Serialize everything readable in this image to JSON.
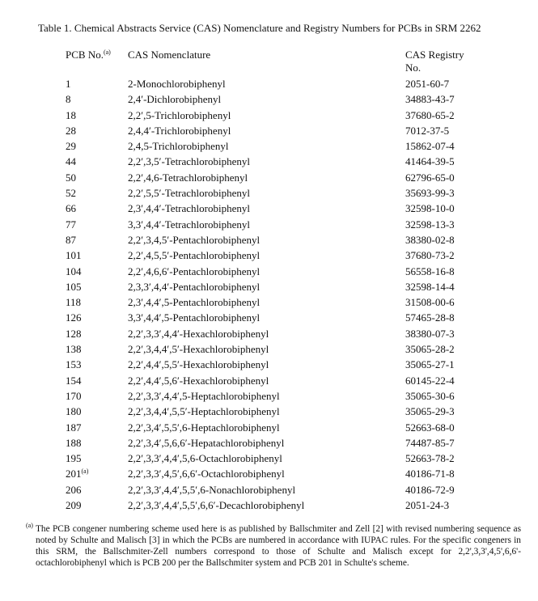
{
  "title": "Table 1.  Chemical Abstracts Service (CAS) Nomenclature and Registry Numbers for PCBs in SRM 2262",
  "headers": {
    "pcb": "PCB No.",
    "pcb_sup": "(a)",
    "name": "CAS Nomenclature",
    "cas_line1": "CAS Registry",
    "cas_line2": "No."
  },
  "rows": [
    {
      "pcb": "1",
      "sup": "",
      "name": "2-Monochlorobiphenyl",
      "cas": "2051-60-7"
    },
    {
      "pcb": "8",
      "sup": "",
      "name": "2,4′-Dichlorobiphenyl",
      "cas": "34883-43-7"
    },
    {
      "pcb": "18",
      "sup": "",
      "name": "2,2′,5-Trichlorobiphenyl",
      "cas": "37680-65-2"
    },
    {
      "pcb": "28",
      "sup": "",
      "name": "2,4,4′-Trichlorobiphenyl",
      "cas": "7012-37-5"
    },
    {
      "pcb": "29",
      "sup": "",
      "name": "2,4,5-Trichlorobiphenyl",
      "cas": "15862-07-4"
    },
    {
      "pcb": "44",
      "sup": "",
      "name": "2,2′,3,5′-Tetrachlorobiphenyl",
      "cas": "41464-39-5"
    },
    {
      "pcb": "50",
      "sup": "",
      "name": "2,2′,4,6-Tetrachlorobiphenyl",
      "cas": "62796-65-0"
    },
    {
      "pcb": "52",
      "sup": "",
      "name": "2,2′,5,5′-Tetrachlorobiphenyl",
      "cas": "35693-99-3"
    },
    {
      "pcb": "66",
      "sup": "",
      "name": "2,3′,4,4′-Tetrachlorobiphenyl",
      "cas": "32598-10-0"
    },
    {
      "pcb": "77",
      "sup": "",
      "name": "3,3′,4,4′-Tetrachlorobiphenyl",
      "cas": "32598-13-3"
    },
    {
      "pcb": "87",
      "sup": "",
      "name": "2,2′,3,4,5′-Pentachlorobiphenyl",
      "cas": "38380-02-8"
    },
    {
      "pcb": "101",
      "sup": "",
      "name": "2,2′,4,5,5′-Pentachlorobiphenyl",
      "cas": "37680-73-2"
    },
    {
      "pcb": "104",
      "sup": "",
      "name": "2,2′,4,6,6′-Pentachlorobiphenyl",
      "cas": "56558-16-8"
    },
    {
      "pcb": "105",
      "sup": "",
      "name": "2,3,3′,4,4′-Pentachlorobiphenyl",
      "cas": "32598-14-4"
    },
    {
      "pcb": "118",
      "sup": "",
      "name": "2,3′,4,4′,5-Pentachlorobiphenyl",
      "cas": "31508-00-6"
    },
    {
      "pcb": "126",
      "sup": "",
      "name": "3,3′,4,4′,5-Pentachlorobiphenyl",
      "cas": "57465-28-8"
    },
    {
      "pcb": "128",
      "sup": "",
      "name": "2,2′,3,3′,4,4′-Hexachlorobiphenyl",
      "cas": "38380-07-3"
    },
    {
      "pcb": "138",
      "sup": "",
      "name": "2,2′,3,4,4′,5′-Hexachlorobiphenyl",
      "cas": "35065-28-2"
    },
    {
      "pcb": "153",
      "sup": "",
      "name": "2,2′,4,4′,5,5′-Hexachlorobiphenyl",
      "cas": "35065-27-1"
    },
    {
      "pcb": "154",
      "sup": "",
      "name": "2,2′,4,4′,5,6′-Hexachlorobiphenyl",
      "cas": "60145-22-4"
    },
    {
      "pcb": "170",
      "sup": "",
      "name": "2,2′,3,3′,4,4′,5-Heptachlorobiphenyl",
      "cas": "35065-30-6"
    },
    {
      "pcb": "180",
      "sup": "",
      "name": "2,2′,3,4,4′,5,5′-Heptachlorobiphenyl",
      "cas": "35065-29-3"
    },
    {
      "pcb": "187",
      "sup": "",
      "name": "2,2′,3,4′,5,5′,6-Heptachlorobiphenyl",
      "cas": "52663-68-0"
    },
    {
      "pcb": "188",
      "sup": "",
      "name": "2,2′,3,4′,5,6,6′-Hepatachlorobiphenyl",
      "cas": "74487-85-7"
    },
    {
      "pcb": "195",
      "sup": "",
      "name": "2,2′,3,3′,4,4′,5,6-Octachlorobiphenyl",
      "cas": "52663-78-2"
    },
    {
      "pcb": "201",
      "sup": "(a)",
      "name": "2,2′,3,3′,4,5′,6,6′-Octachlorobiphenyl",
      "cas": "40186-71-8"
    },
    {
      "pcb": "206",
      "sup": "",
      "name": "2,2′,3,3′,4,4′,5,5′,6-Nonachlorobiphenyl",
      "cas": "40186-72-9"
    },
    {
      "pcb": "209",
      "sup": "",
      "name": "2,2′,3,3′,4,4′,5,5′,6,6′-Decachlorobiphenyl",
      "cas": "2051-24-3"
    }
  ],
  "footnote": {
    "marker": "(a)",
    "text": " The PCB congener numbering scheme used here is as published by Ballschmiter and Zell [2] with revised numbering sequence as noted by Schulte and Malisch [3] in which the PCBs are numbered in accordance with IUPAC rules.  For the specific congeners in this SRM, the Ballschmiter-Zell numbers correspond to those of Schulte and Malisch except for 2,2',3,3',4,5',6,6'-octachlorobiphenyl which is PCB 200 per the Ballschmiter system and PCB 201 in Schulte's scheme."
  }
}
